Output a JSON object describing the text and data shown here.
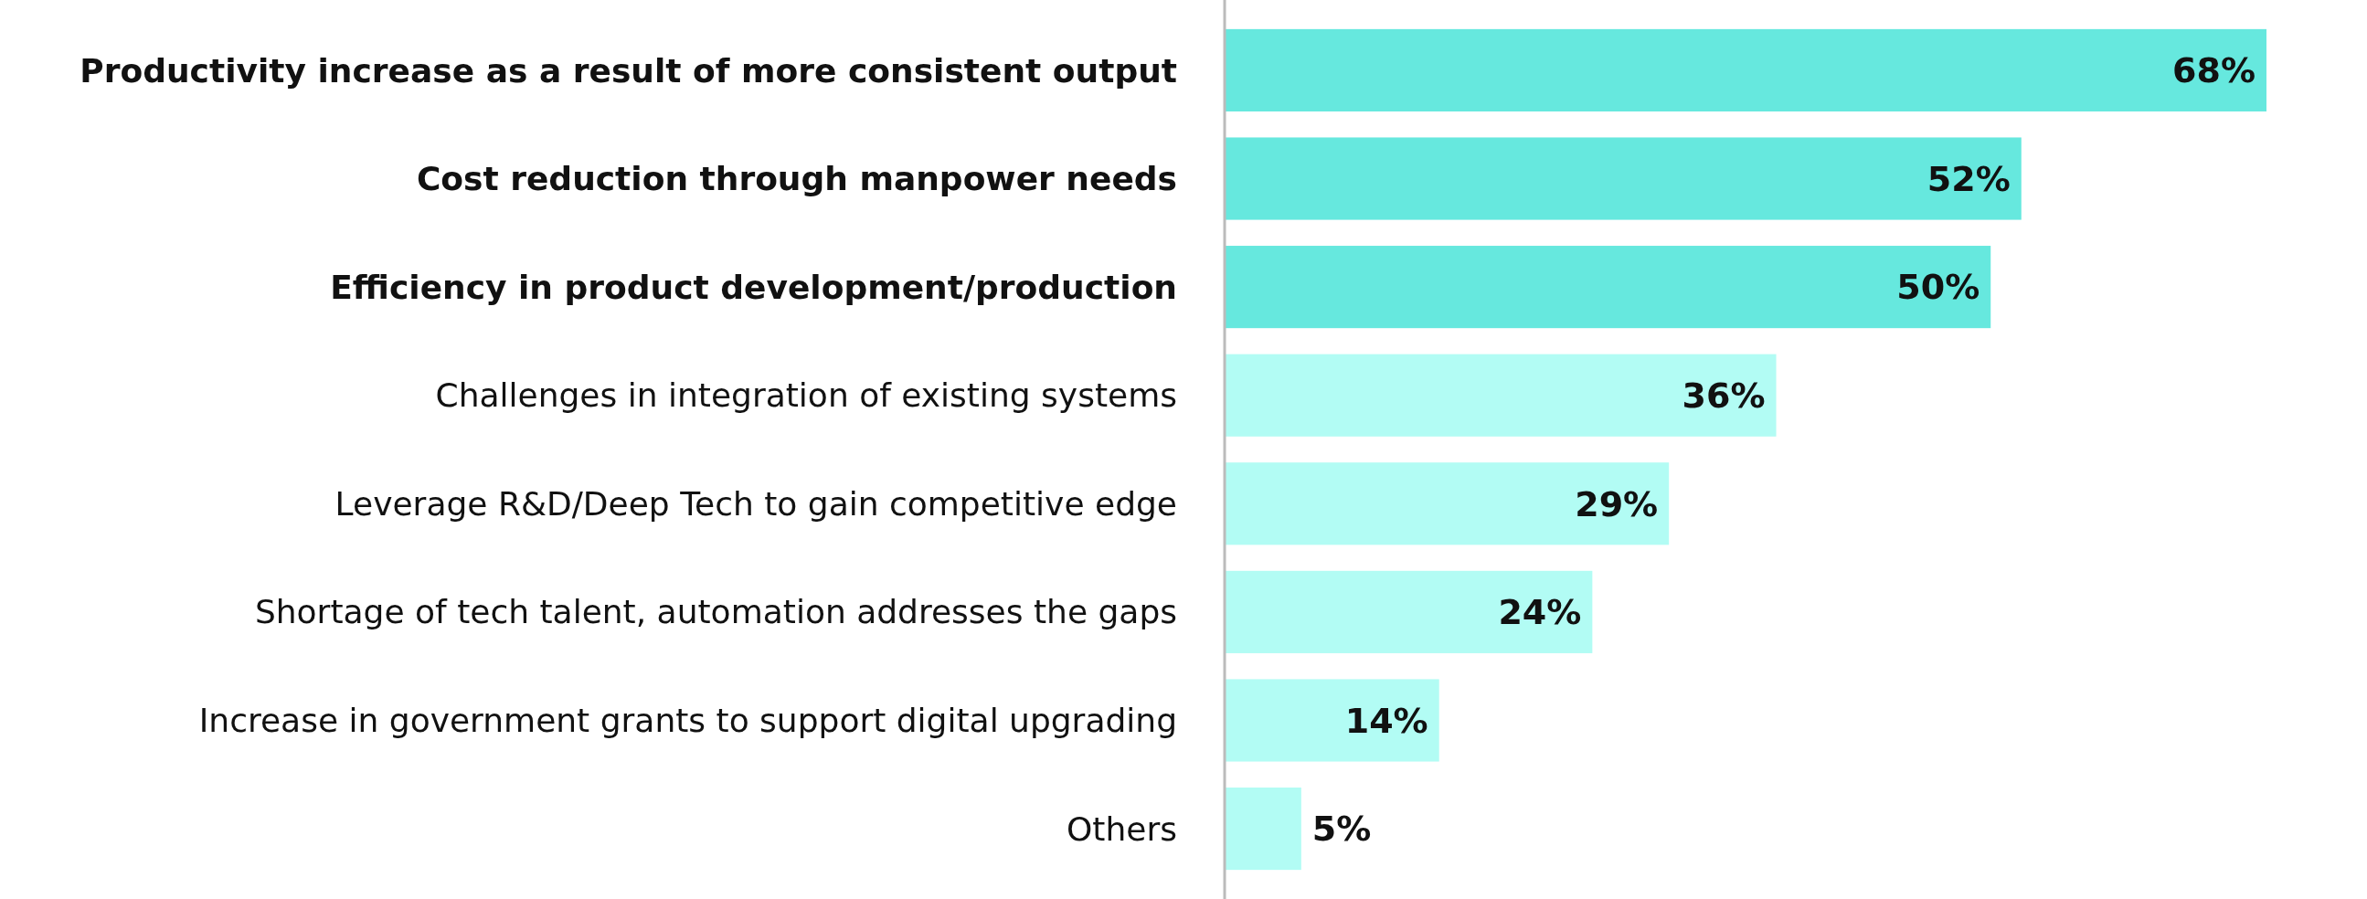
{
  "chart_data": {
    "type": "bar",
    "orientation": "horizontal",
    "categories": [
      "Productivity increase as a result of more consistent output",
      "Cost reduction through manpower needs",
      "Efficiency in product development/production",
      "Challenges in integration of existing systems",
      "Leverage R&D/Deep Tech to gain competitive edge",
      "Shortage of tech talent, automation addresses the gaps",
      "Increase in government grants to support digital upgrading",
      "Others"
    ],
    "values": [
      68,
      52,
      50,
      36,
      29,
      24,
      14,
      5
    ],
    "value_labels": [
      "68%",
      "52%",
      "50%",
      "36%",
      "29%",
      "24%",
      "14%",
      "5%"
    ],
    "colors": [
      "#66e8de",
      "#66e8de",
      "#66e8de",
      "#b2fcf4",
      "#b2fcf4",
      "#b2fcf4",
      "#b2fcf4",
      "#b2fcf4"
    ]
  }
}
